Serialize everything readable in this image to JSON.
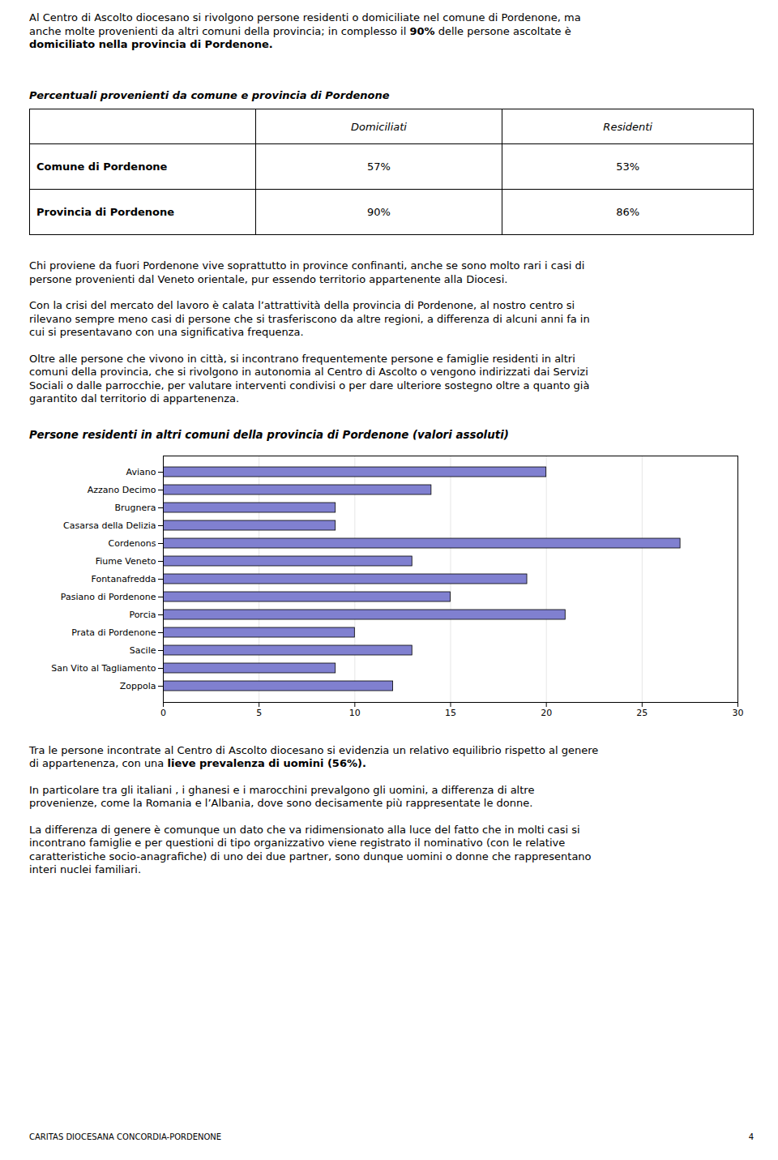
{
  "paragraphs_before_table": [
    [
      [
        "Al Centro di Ascolto diocesano si rivolgono persone residenti o domiciliate nel comune di Pordenone, ma"
      ],
      [
        "anche molte provenienti da altri comuni della provincia; in complesso il ",
        {
          "bold": "90%"
        },
        " delle persone ascoltate è"
      ],
      [
        {
          "bold": "domiciliato nella provincia di Pordenone."
        }
      ]
    ]
  ],
  "table": {
    "title": "Percentuali provenienti da comune e provincia di Pordenone",
    "columns": [
      "Domiciliati",
      "Residenti"
    ],
    "rows": [
      {
        "label": "Comune di Pordenone",
        "values": [
          "57%",
          "53%"
        ]
      },
      {
        "label": "Provincia di Pordenone",
        "values": [
          "90%",
          "86%"
        ]
      }
    ]
  },
  "paragraphs_after_table": [
    [
      [
        "Chi proviene da fuori Pordenone vive soprattutto in province confinanti, anche se sono molto rari i casi di"
      ],
      [
        "persone provenienti dal Veneto orientale, pur essendo territorio appartenente alla Diocesi."
      ]
    ],
    [
      [
        "Con la crisi del mercato del lavoro è calata l’attrattività della provincia di Pordenone, al nostro centro si"
      ],
      [
        "rilevano sempre meno casi di persone che si trasferiscono da altre regioni, a differenza di alcuni anni fa in"
      ],
      [
        "cui si presentavano con una significativa frequenza."
      ]
    ],
    [
      [
        "Oltre alle persone che vivono in città, si incontrano frequentemente persone e famiglie residenti in altri"
      ],
      [
        "comuni della provincia, che si rivolgono in autonomia al Centro di Ascolto o vengono indirizzati dai Servizi"
      ],
      [
        "Sociali o dalle parrocchie, per valutare interventi condivisi o per dare ulteriore sostegno oltre a quanto già"
      ],
      [
        "garantito dal territorio di appartenenza."
      ]
    ]
  ],
  "chart_data": {
    "type": "bar",
    "orientation": "horizontal",
    "title": "Persone residenti in altri comuni della provincia di Pordenone (valori assoluti)",
    "categories": [
      "Aviano",
      "Azzano Decimo",
      "Brugnera",
      "Casarsa della Delizia",
      "Cordenons",
      "Fiume Veneto",
      "Fontanafredda",
      "Pasiano di Pordenone",
      "Porcia",
      "Prata di Pordenone",
      "Sacile",
      "San Vito al Tagliamento",
      "Zoppola"
    ],
    "values": [
      20,
      14,
      9,
      9,
      27,
      13,
      19,
      15,
      21,
      10,
      13,
      9,
      12
    ],
    "color": "#8080d0",
    "xlim": [
      0,
      30
    ],
    "xticks": [
      0,
      5,
      10,
      15,
      20,
      25,
      30
    ],
    "grid": true
  },
  "paragraphs_after_chart": [
    [
      [
        "Tra le persone incontrate al Centro di Ascolto diocesano si evidenzia un relativo equilibrio rispetto al genere"
      ],
      [
        "di appartenenza, con una ",
        {
          "bold": "lieve prevalenza di uomini (56%)."
        }
      ]
    ],
    [
      [
        "In particolare tra gli italiani , i ghanesi e i marocchini prevalgono gli uomini, a differenza di altre"
      ],
      [
        "provenienze, come la Romania e l’Albania, dove sono decisamente più rappresentate le donne."
      ]
    ],
    [
      [
        "La differenza di genere è comunque un dato che va ridimensionato alla luce del fatto che in molti casi si"
      ],
      [
        "incontrano famiglie e per questioni di tipo organizzativo viene registrato il nominativo (con le relative"
      ],
      [
        "caratteristiche socio-anagrafiche) di uno dei due partner, sono dunque uomini o donne che rappresentano"
      ],
      [
        "interi nuclei familiari."
      ]
    ]
  ],
  "footer": {
    "left": "CARITAS DIOCESANA CONCORDIA-PORDENONE",
    "right": "4"
  }
}
